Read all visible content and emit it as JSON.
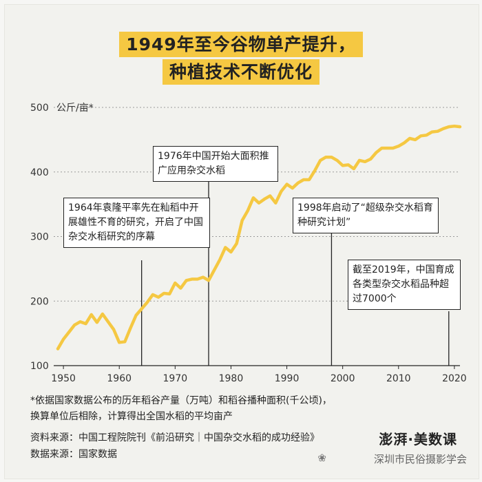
{
  "title_line1": "1949年至今谷物单产提升，",
  "title_line2": "种植技术不断优化",
  "unit_label": "公斤/亩*",
  "chart_data": {
    "type": "line",
    "title": "1949年至今谷物单产提升，种植技术不断优化",
    "ylabel": "公斤/亩*",
    "xlim": [
      1949,
      2021
    ],
    "ylim": [
      100,
      500
    ],
    "yticks": [
      100,
      200,
      300,
      400,
      500
    ],
    "xticks": [
      1950,
      1960,
      1970,
      1980,
      1990,
      2000,
      2010,
      2020
    ],
    "grid": "horizontal dotted",
    "series_color": "#f5c842",
    "x": [
      1949,
      1950,
      1951,
      1952,
      1953,
      1954,
      1955,
      1956,
      1957,
      1958,
      1959,
      1960,
      1961,
      1962,
      1963,
      1964,
      1965,
      1966,
      1967,
      1968,
      1969,
      1970,
      1971,
      1972,
      1973,
      1974,
      1975,
      1976,
      1977,
      1978,
      1979,
      1980,
      1981,
      1982,
      1983,
      1984,
      1985,
      1986,
      1987,
      1988,
      1989,
      1990,
      1991,
      1992,
      1993,
      1994,
      1995,
      1996,
      1997,
      1998,
      1999,
      2000,
      2001,
      2002,
      2003,
      2004,
      2005,
      2006,
      2007,
      2008,
      2009,
      2010,
      2011,
      2012,
      2013,
      2014,
      2015,
      2016,
      2017,
      2018,
      2019,
      2020,
      2021
    ],
    "y": [
      126,
      141,
      152,
      163,
      168,
      165,
      179,
      167,
      180,
      168,
      156,
      136,
      137,
      158,
      178,
      188,
      198,
      210,
      206,
      212,
      211,
      228,
      220,
      232,
      234,
      234,
      237,
      232,
      248,
      264,
      283,
      276,
      289,
      325,
      340,
      360,
      352,
      358,
      363,
      352,
      370,
      381,
      375,
      383,
      388,
      388,
      402,
      418,
      423,
      423,
      418,
      410,
      411,
      405,
      418,
      416,
      420,
      430,
      437,
      437,
      437,
      440,
      445,
      452,
      450,
      456,
      457,
      462,
      463,
      467,
      470,
      471,
      470
    ]
  },
  "annotations": [
    {
      "text": "1964年袁隆平率先在籼稻中开展雄性不育的研究，开启了中国杂交水稻研究的序幕",
      "year": 1964
    },
    {
      "text": "1976年中国开始大面积推广应用杂交水稻",
      "year": 1976
    },
    {
      "text": "1998年启动了“超级杂交水稻育种研究计划”",
      "year": 1998
    },
    {
      "text": "截至2019年，中国育成各类型杂交水稻品种超过7000个",
      "year": 2019
    }
  ],
  "footnote_line1": "*依据国家数据公布的历年稻谷产量（万吨）和稻谷播种面积(千公顷)，",
  "footnote_line2": "换算单位后相除，计算得出全国水稻的平均亩产",
  "source_label": "资料来源：",
  "source_text": "中国工程院院刊《前沿研究｜中国杂交水稻的成功经验》",
  "data_label": "数据来源：",
  "data_text": "国家数据",
  "brand": "澎湃·美数课",
  "watermark": "深圳市民俗摄影学会"
}
